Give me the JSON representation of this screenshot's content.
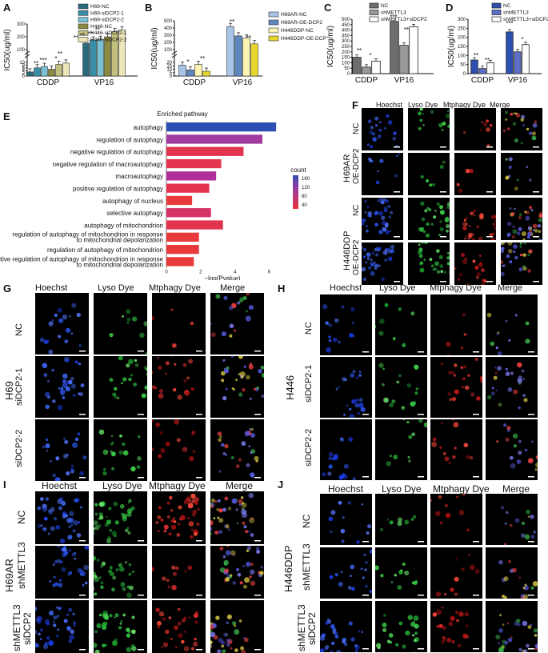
{
  "panel_letters": {
    "A": "A",
    "B": "B",
    "C": "C",
    "D": "D",
    "E": "E",
    "F": "F",
    "G": "G",
    "H": "H",
    "I": "I",
    "J": "J"
  },
  "stars": {
    "one": "*",
    "two": "**",
    "three": "***"
  },
  "chart_data": [
    {
      "panel": "A",
      "type": "bar",
      "ylabel": "IC50(ug/ml)",
      "categories": [
        "CDDP",
        "VP16"
      ],
      "yticks_bottom": [
        "0",
        "2",
        "4",
        "6",
        "8",
        "10"
      ],
      "yticks_top": [
        "100",
        "200",
        "300"
      ],
      "series": [
        {
          "name": "H69-NC",
          "color": "#2b6a7c",
          "values": [
            3,
            150
          ]
        },
        {
          "name": "H69-siDCP2-1",
          "color": "#3a8fa8",
          "values": [
            6,
            175
          ]
        },
        {
          "name": "H69-siDCP2-2",
          "color": "#78c2d3",
          "values": [
            7,
            180
          ]
        },
        {
          "name": "H446-NC",
          "color": "#8c8a3e",
          "values": [
            5,
            200
          ]
        },
        {
          "name": "H446-siDCP2-1",
          "color": "#c3c07d",
          "values": [
            8.5,
            240
          ]
        },
        {
          "name": "H446-siDCP2-2",
          "color": "#ece6b8",
          "values": [
            9.5,
            255
          ]
        }
      ]
    },
    {
      "panel": "B",
      "type": "bar",
      "ylabel": "IC50(ug/ml)",
      "categories": [
        "CDDP",
        "VP16"
      ],
      "yticks_bottom": [
        "0",
        "5",
        "10",
        "15",
        "20"
      ],
      "yticks_top": [
        "100",
        "200",
        "300",
        "400",
        "500"
      ],
      "series": [
        {
          "name": "H69AR-NC",
          "color": "#a9c4e6",
          "values": [
            16,
            420
          ]
        },
        {
          "name": "H69AR-OE-DCP2",
          "color": "#5f87bf",
          "values": [
            9,
            290
          ]
        },
        {
          "name": "H446DDP-NC",
          "color": "#fbf2b3",
          "values": [
            17,
            260
          ]
        },
        {
          "name": "H446DDP-OE-DCP2",
          "color": "#e8d52c",
          "values": [
            7,
            180
          ]
        }
      ]
    },
    {
      "panel": "C",
      "type": "bar",
      "ylabel": "IC50(ug/ml)",
      "categories": [
        "CDDP",
        "VP16"
      ],
      "yticks": [
        "0",
        "50",
        "100",
        "150",
        "200",
        "250",
        "300",
        "350",
        "400",
        "450",
        "500"
      ],
      "ylim": [
        0,
        500
      ],
      "series": [
        {
          "name": "NC",
          "color": "#6e6e6e",
          "values": [
            150,
            480
          ]
        },
        {
          "name": "shMETTL3",
          "color": "#9a9a9a",
          "values": [
            60,
            260
          ]
        },
        {
          "name": "shMETTL3+siDCP2",
          "color": "#ffffff",
          "values": [
            115,
            430
          ]
        }
      ]
    },
    {
      "panel": "D",
      "type": "bar",
      "ylabel": "IC50(ug/ml)",
      "categories": [
        "CDDP",
        "VP16"
      ],
      "yticks": [
        "0",
        "50",
        "100",
        "150",
        "200",
        "250",
        "300"
      ],
      "ylim": [
        0,
        300
      ],
      "series": [
        {
          "name": "NC",
          "color": "#2c4fb0",
          "values": [
            75,
            230
          ]
        },
        {
          "name": "shMETTL3",
          "color": "#5b6fc9",
          "values": [
            28,
            120
          ]
        },
        {
          "name": "shMETTL3+siDCP2",
          "color": "#ffffff",
          "values": [
            60,
            160
          ]
        }
      ]
    },
    {
      "panel": "E",
      "type": "bar",
      "title": "Enriched pathway",
      "xlabel": "−log(Pvalue)",
      "xticks": [
        "0",
        "2",
        "4",
        "6"
      ],
      "xlim": [
        0,
        7
      ],
      "legend_title": "count",
      "legend_ticks": [
        "160",
        "120",
        "80",
        "40"
      ],
      "categories": [
        "autophagy",
        "regulation of autophagy",
        "negative regulation of autophagy",
        "negative regulation of macroautophagy",
        "macroautophagy",
        "positive regulation of autophagy",
        "autophagy of nucleus",
        "selective autophagy",
        "autophagy of mitochondrion",
        "regulation of autophagy of mitochondrion in response to mitochondrial depolarization",
        "regulation of autophagy of mitochondrion",
        "positive regulation of autophagy of mitochondrion in response to mitochondrial depolarization"
      ],
      "values": [
        6.4,
        5.6,
        4.5,
        3.2,
        2.9,
        2.5,
        1.5,
        2.6,
        3.3,
        1.9,
        1.9,
        1.6
      ],
      "colors": [
        "#2d4fb4",
        "#a03a9e",
        "#e2334f",
        "#e2334f",
        "#b02f9a",
        "#e2334f",
        "#e83a3a",
        "#d63264",
        "#e2334f",
        "#e83a3a",
        "#e83a3a",
        "#e83a3a"
      ]
    }
  ],
  "micro": {
    "headers": {
      "hoechst": "Hoechst",
      "lyso": "Lyso Dye",
      "mtphagy": "Mtphagy Dye",
      "merge": "Merge"
    },
    "F": {
      "group1": "H69AR",
      "group2": "H446DDP",
      "row_nc": "NC",
      "row_oe": "OE-DCP2"
    },
    "G": {
      "group": "H69",
      "row1": "NC",
      "row2": "siDCP2-1",
      "row3": "siDCP2-2"
    },
    "H": {
      "group": "H446",
      "row1": "NC",
      "row2": "siDCP2-1",
      "row3": "siDCP2-2"
    },
    "I": {
      "group": "H69AR",
      "row1": "NC",
      "row2": "shMETTL3",
      "row3a": "shMETTL3",
      "row3b": "siDCP2"
    },
    "J": {
      "group": "H446DDP",
      "row1": "NC",
      "row2": "shMETTL3",
      "row3a": "shMETTL3",
      "row3b": "siDCP2"
    }
  }
}
